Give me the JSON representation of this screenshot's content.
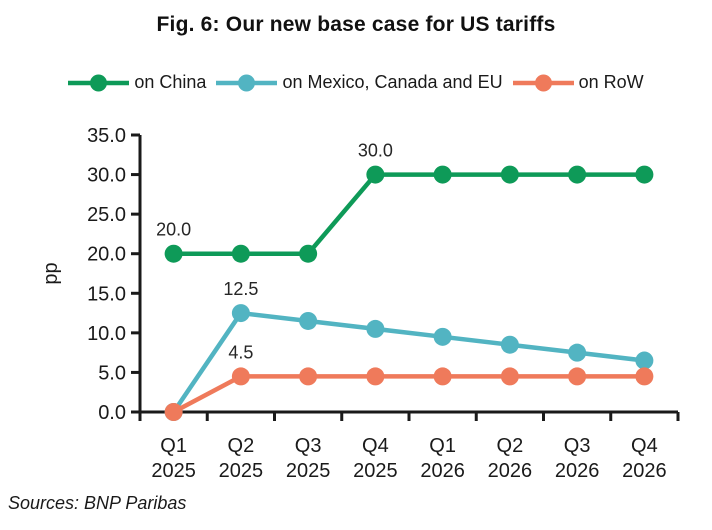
{
  "title": "Fig. 6: Our new base case for US tariffs",
  "source": "Sources: BNP Paribas",
  "colors": {
    "axis": "#1a1a1a",
    "background": "#ffffff"
  },
  "chart_data": {
    "type": "line",
    "title": "Fig. 6: Our new base case for US tariffs",
    "xlabel": "",
    "ylabel": "pp",
    "ylim": [
      0,
      35
    ],
    "ytick_step": 5,
    "grid": false,
    "legend_position": "top",
    "categories": [
      {
        "quarter": "Q1",
        "year": "2025"
      },
      {
        "quarter": "Q2",
        "year": "2025"
      },
      {
        "quarter": "Q3",
        "year": "2025"
      },
      {
        "quarter": "Q4",
        "year": "2025"
      },
      {
        "quarter": "Q1",
        "year": "2026"
      },
      {
        "quarter": "Q2",
        "year": "2026"
      },
      {
        "quarter": "Q3",
        "year": "2026"
      },
      {
        "quarter": "Q4",
        "year": "2026"
      }
    ],
    "series": [
      {
        "name": "on China",
        "color": "#0e9a58",
        "values": [
          20,
          20,
          20,
          30,
          30,
          30,
          30,
          30
        ],
        "labels": [
          {
            "index": 0,
            "text": "20.0"
          },
          {
            "index": 3,
            "text": "30.0"
          }
        ]
      },
      {
        "name": "on Mexico, Canada and EU",
        "color": "#52b4c2",
        "values": [
          0,
          12.5,
          11.5,
          10.5,
          9.5,
          8.5,
          7.5,
          6.5
        ],
        "labels": [
          {
            "index": 1,
            "text": "12.5"
          }
        ]
      },
      {
        "name": "on RoW",
        "color": "#ef7a5b",
        "values": [
          0,
          4.5,
          4.5,
          4.5,
          4.5,
          4.5,
          4.5,
          4.5
        ],
        "labels": [
          {
            "index": 1,
            "text": "4.5"
          }
        ]
      }
    ]
  }
}
